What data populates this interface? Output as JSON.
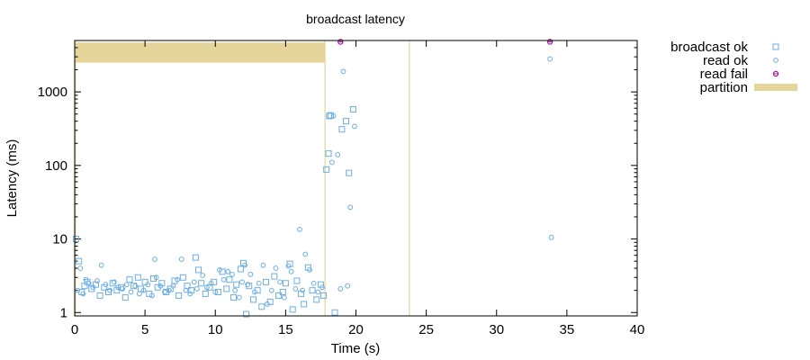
{
  "chart_data": {
    "type": "scatter",
    "title": "broadcast latency",
    "xlabel": "Time (s)",
    "ylabel": "Latency (ms)",
    "xlim": [
      0,
      40
    ],
    "ylim": [
      0.9,
      5000
    ],
    "y_scale": "log",
    "x_ticks": [
      0,
      5,
      10,
      15,
      20,
      25,
      30,
      35,
      40
    ],
    "y_ticks": [
      {
        "value": 1,
        "label": "1"
      },
      {
        "value": 10,
        "label": "10"
      },
      {
        "value": 100,
        "label": "100"
      },
      {
        "value": 1000,
        "label": "1000"
      }
    ],
    "legend_position": "outside-right",
    "colors": {
      "ok": "#6aaee8",
      "fail": "#a0119e",
      "partition": "#e6d59a",
      "axis": "#000000"
    },
    "partitions": [
      {
        "start": 0.05,
        "end": 17.8
      },
      {
        "start": 23.8,
        "end": 23.8
      }
    ],
    "partition_band": {
      "low": 2500,
      "high": 4700
    },
    "series": [
      {
        "name": "broadcast ok",
        "marker": "square",
        "points": [
          [
            0.1,
            10
          ],
          [
            0.3,
            5.0
          ],
          [
            0.5,
            1.9
          ],
          [
            0.7,
            2.3
          ],
          [
            0.9,
            2.6
          ],
          [
            1.2,
            2.1
          ],
          [
            1.5,
            2.4
          ],
          [
            1.8,
            1.7
          ],
          [
            2.1,
            2.2
          ],
          [
            2.4,
            1.9
          ],
          [
            2.7,
            2.5
          ],
          [
            3.0,
            2.0
          ],
          [
            3.3,
            2.2
          ],
          [
            3.6,
            1.6
          ],
          [
            3.9,
            2.8
          ],
          [
            4.2,
            2.3
          ],
          [
            4.5,
            3.0
          ],
          [
            4.7,
            2.1
          ],
          [
            5.0,
            2.6
          ],
          [
            5.3,
            1.8
          ],
          [
            5.6,
            2.9
          ],
          [
            5.9,
            2.2
          ],
          [
            6.2,
            2.5
          ],
          [
            6.5,
            1.9
          ],
          [
            6.8,
            2.1
          ],
          [
            7.1,
            2.7
          ],
          [
            7.4,
            1.7
          ],
          [
            7.7,
            3.0
          ],
          [
            8.0,
            2.3
          ],
          [
            8.3,
            2.0
          ],
          [
            8.6,
            5.6
          ],
          [
            8.8,
            3.8
          ],
          [
            9.0,
            2.5
          ],
          [
            9.3,
            1.8
          ],
          [
            9.6,
            2.2
          ],
          [
            9.9,
            2.6
          ],
          [
            10.2,
            1.9
          ],
          [
            10.5,
            3.6
          ],
          [
            10.8,
            2.1
          ],
          [
            11.0,
            2.8
          ],
          [
            11.3,
            1.6
          ],
          [
            11.5,
            2.4
          ],
          [
            11.8,
            3.9
          ],
          [
            12.0,
            4.7
          ],
          [
            12.2,
            0.95
          ],
          [
            12.4,
            2.3
          ],
          [
            12.7,
            1.5
          ],
          [
            13.0,
            2.0
          ],
          [
            13.3,
            1.2
          ],
          [
            13.6,
            2.6
          ],
          [
            13.9,
            1.4
          ],
          [
            14.2,
            3.1
          ],
          [
            14.5,
            1.7
          ],
          [
            14.8,
            1.9
          ],
          [
            15.0,
            2.5
          ],
          [
            15.3,
            4.6
          ],
          [
            15.5,
            1.1
          ],
          [
            15.8,
            2.7
          ],
          [
            16.1,
            1.8
          ],
          [
            16.3,
            1.3
          ],
          [
            16.6,
            4.1
          ],
          [
            16.9,
            2.0
          ],
          [
            17.2,
            1.5
          ],
          [
            17.5,
            2.4
          ],
          [
            17.7,
            1.7
          ],
          [
            17.9,
            88
          ],
          [
            18.05,
            145
          ],
          [
            18.2,
            480
          ],
          [
            18.5,
            1.0
          ],
          [
            19.0,
            310
          ],
          [
            19.3,
            400
          ],
          [
            19.5,
            79
          ],
          [
            19.8,
            580
          ],
          [
            18.1,
            470
          ]
        ]
      },
      {
        "name": "read ok",
        "marker": "circle",
        "points": [
          [
            0.2,
            2.0
          ],
          [
            0.4,
            4.0
          ],
          [
            0.6,
            1.8
          ],
          [
            0.8,
            2.8
          ],
          [
            1.0,
            2.5
          ],
          [
            1.3,
            2.2
          ],
          [
            1.6,
            2.7
          ],
          [
            1.9,
            4.4
          ],
          [
            2.2,
            2.4
          ],
          [
            2.5,
            2.0
          ],
          [
            2.8,
            2.6
          ],
          [
            3.1,
            2.2
          ],
          [
            3.4,
            2.1
          ],
          [
            3.7,
            2.4
          ],
          [
            4.0,
            1.9
          ],
          [
            4.3,
            2.3
          ],
          [
            4.6,
            1.8
          ],
          [
            4.9,
            2.0
          ],
          [
            5.2,
            2.4
          ],
          [
            5.5,
            1.7
          ],
          [
            5.7,
            5.3
          ],
          [
            5.8,
            3.0
          ],
          [
            6.1,
            2.3
          ],
          [
            6.4,
            1.9
          ],
          [
            6.7,
            2.0
          ],
          [
            7.0,
            2.3
          ],
          [
            7.3,
            2.8
          ],
          [
            7.6,
            5.3
          ],
          [
            7.9,
            2.0
          ],
          [
            8.2,
            1.8
          ],
          [
            8.5,
            2.6
          ],
          [
            8.7,
            2.1
          ],
          [
            9.1,
            3.2
          ],
          [
            9.4,
            2.2
          ],
          [
            9.7,
            2.5
          ],
          [
            10.0,
            1.9
          ],
          [
            10.3,
            3.8
          ],
          [
            10.6,
            2.8
          ],
          [
            10.9,
            3.6
          ],
          [
            11.2,
            3.3
          ],
          [
            11.4,
            2.0
          ],
          [
            11.7,
            1.6
          ],
          [
            11.9,
            2.6
          ],
          [
            12.1,
            4.4
          ],
          [
            12.3,
            2.4
          ],
          [
            12.5,
            3.3
          ],
          [
            12.8,
            1.9
          ],
          [
            13.1,
            2.5
          ],
          [
            13.4,
            4.4
          ],
          [
            13.7,
            1.3
          ],
          [
            14.0,
            2.0
          ],
          [
            14.3,
            4.0
          ],
          [
            14.6,
            2.6
          ],
          [
            14.9,
            1.6
          ],
          [
            15.2,
            4.3
          ],
          [
            15.4,
            3.6
          ],
          [
            15.7,
            2.1
          ],
          [
            16.0,
            13.5
          ],
          [
            16.2,
            2.0
          ],
          [
            16.4,
            6.2
          ],
          [
            16.7,
            3.8
          ],
          [
            17.0,
            2.5
          ],
          [
            17.3,
            1.9
          ],
          [
            17.6,
            2.2
          ],
          [
            18.3,
            110
          ],
          [
            18.4,
            470
          ],
          [
            18.7,
            140
          ],
          [
            18.9,
            2.1
          ],
          [
            19.1,
            1900
          ],
          [
            19.4,
            2.3
          ],
          [
            19.6,
            27
          ],
          [
            19.9,
            340
          ],
          [
            33.8,
            2800
          ],
          [
            33.9,
            10.5
          ]
        ]
      },
      {
        "name": "read fail",
        "marker": "octagon",
        "points": [
          [
            18.9,
            4800
          ],
          [
            33.8,
            4800
          ]
        ]
      },
      {
        "name": "partition",
        "marker": "bar",
        "points": []
      }
    ]
  }
}
